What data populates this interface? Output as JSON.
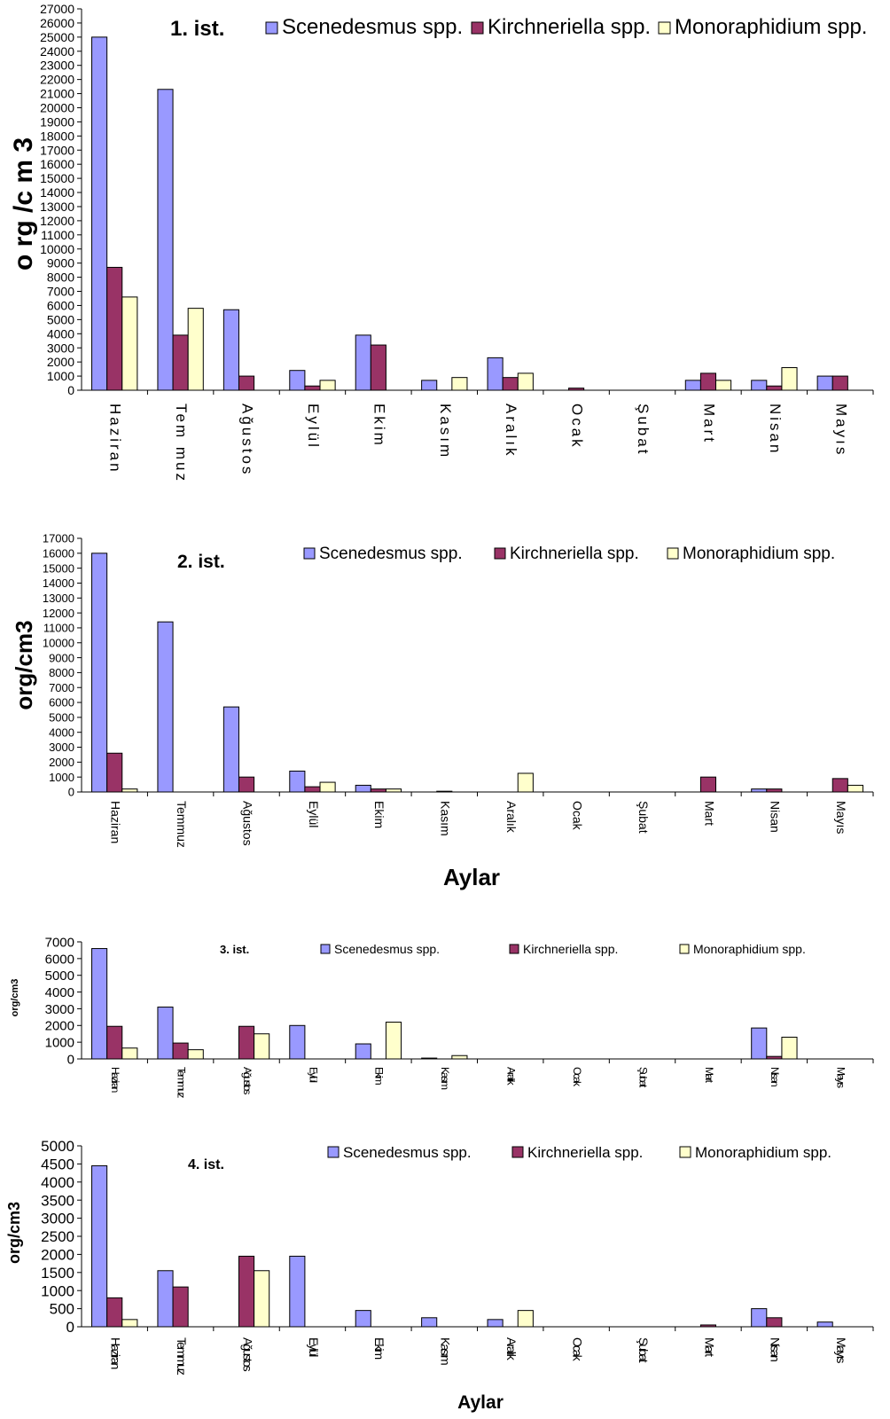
{
  "colors": {
    "Scenedesmus spp.": "#9999ff",
    "Kirchneriella spp.": "#993366",
    "Monoraphidium spp.": "#ffffcc"
  },
  "chart_data": [
    {
      "type": "bar",
      "title": "1. ist.",
      "ylabel": "o rg /c m 3",
      "xlabel": "",
      "ylim": [
        0,
        27000
      ],
      "ytick_step": 1000,
      "categories": [
        "Haziran",
        "Tem muz",
        "Ağustos",
        "Eylül",
        "Ekim",
        "Kasım",
        "Aralık",
        "Ocak",
        "Şubat",
        "Mart",
        "Nisan",
        "Mayıs"
      ],
      "series": [
        {
          "name": "Scenedesmus spp.",
          "values": [
            25000,
            21300,
            5700,
            1400,
            3900,
            700,
            2300,
            0,
            0,
            700,
            700,
            1000
          ]
        },
        {
          "name": "Kirchneriella spp.",
          "values": [
            8700,
            3900,
            1000,
            300,
            3200,
            0,
            900,
            150,
            0,
            1200,
            300,
            1000
          ]
        },
        {
          "name": "Monoraphidium spp.",
          "values": [
            6600,
            5800,
            0,
            700,
            0,
            900,
            1200,
            0,
            0,
            700,
            1600,
            0
          ]
        }
      ]
    },
    {
      "type": "bar",
      "title": "2. ist.",
      "ylabel": "org/cm3",
      "xlabel": "Aylar",
      "ylim": [
        0,
        17000
      ],
      "ytick_step": 1000,
      "categories": [
        "Haziran",
        "Temmuz",
        "Ağustos",
        "Eylül",
        "Ekim",
        "Kasım",
        "Aralık",
        "Ocak",
        "Şubat",
        "Mart",
        "Nisan",
        "Mayıs"
      ],
      "series": [
        {
          "name": "Scenedesmus spp.",
          "values": [
            16000,
            11400,
            5700,
            1400,
            450,
            0,
            0,
            0,
            0,
            0,
            200,
            0
          ]
        },
        {
          "name": "Kirchneriella spp.",
          "values": [
            2600,
            0,
            1000,
            350,
            200,
            50,
            0,
            0,
            0,
            1000,
            200,
            900
          ]
        },
        {
          "name": "Monoraphidium spp.",
          "values": [
            200,
            0,
            0,
            650,
            200,
            0,
            1250,
            0,
            0,
            0,
            0,
            450
          ]
        }
      ]
    },
    {
      "type": "bar",
      "title": "3. ist.",
      "ylabel": "org/cm3",
      "xlabel": "",
      "ylim": [
        0,
        7000
      ],
      "ytick_step": 1000,
      "categories": [
        "Haziran",
        "Temmuz",
        "Ağustos",
        "Eylül",
        "Ekim",
        "Kasım",
        "Aralık",
        "Ocak",
        "Şubat",
        "Mart",
        "Nisan",
        "Mayıs"
      ],
      "series": [
        {
          "name": "Scenedesmus spp.",
          "values": [
            6600,
            3100,
            0,
            2000,
            900,
            50,
            0,
            0,
            0,
            0,
            1850,
            0
          ]
        },
        {
          "name": "Kirchneriella spp.",
          "values": [
            1950,
            950,
            1950,
            0,
            0,
            0,
            0,
            0,
            0,
            0,
            150,
            0
          ]
        },
        {
          "name": "Monoraphidium spp.",
          "values": [
            650,
            550,
            1500,
            0,
            2200,
            200,
            0,
            0,
            0,
            0,
            1300,
            0
          ]
        }
      ]
    },
    {
      "type": "bar",
      "title": "4. ist.",
      "ylabel": "org/cm3",
      "xlabel": "Aylar",
      "ylim": [
        0,
        5000
      ],
      "ytick_step": 500,
      "categories": [
        "Haziran",
        "Temmuz",
        "Ağustos",
        "Eylül",
        "Ekim",
        "Kasım",
        "Aralık",
        "Ocak",
        "Şubat",
        "Mart",
        "Nisan",
        "Mayıs"
      ],
      "series": [
        {
          "name": "Scenedesmus spp.",
          "values": [
            4450,
            1550,
            0,
            1950,
            450,
            250,
            200,
            0,
            0,
            0,
            500,
            130
          ]
        },
        {
          "name": "Kirchneriella spp.",
          "values": [
            800,
            1100,
            1950,
            0,
            0,
            0,
            0,
            0,
            0,
            50,
            250,
            0
          ]
        },
        {
          "name": "Monoraphidium spp.",
          "values": [
            200,
            0,
            1550,
            0,
            0,
            0,
            450,
            0,
            0,
            0,
            0,
            0
          ]
        }
      ]
    }
  ]
}
